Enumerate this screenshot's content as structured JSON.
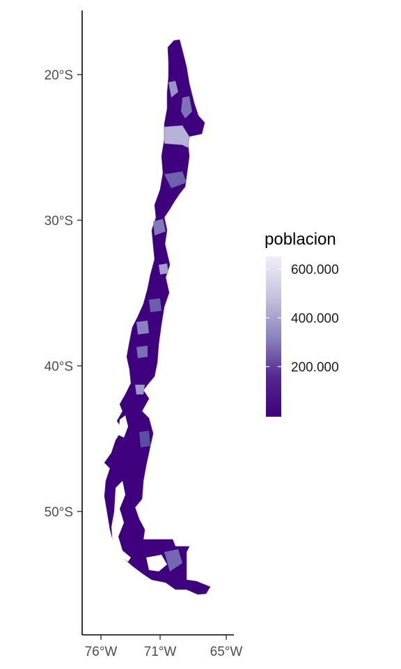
{
  "chart_data": {
    "type": "choropleth",
    "region": "Chile",
    "x_ticks": [
      "76°W",
      "71°W",
      "65°W"
    ],
    "y_ticks": [
      "20°S",
      "30°S",
      "40°S",
      "50°S"
    ],
    "legend": {
      "title": "poblacion",
      "labels": [
        "600.000",
        "400.000",
        "200.000"
      ],
      "range": [
        0,
        650000
      ],
      "color_low": "#3f007d",
      "color_high": "#fcfbfd"
    }
  }
}
